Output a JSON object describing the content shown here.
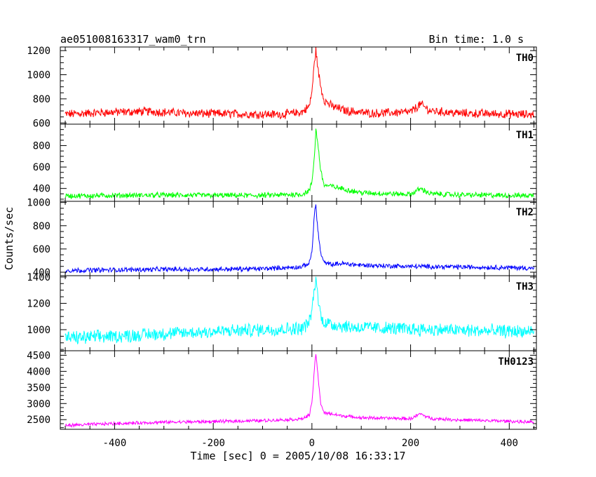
{
  "header": {
    "title": "ae051008163317_wam0_trn",
    "bin_time": "Bin time: 1.0 s"
  },
  "chart_data": {
    "type": "line",
    "xlabel": "Time [sec] 0 = 2005/10/08 16:33:17",
    "ylabel": "Counts/sec",
    "xlim": [
      -510,
      455
    ],
    "xticks": [
      -400,
      -200,
      0,
      200,
      400
    ],
    "grid": false,
    "panels": [
      {
        "name": "TH0",
        "color": "#ff0000",
        "ylim": [
          590,
          1230
        ],
        "yticks": [
          600,
          800,
          1000,
          1200
        ],
        "baseline": 675,
        "noise": 32,
        "x": [
          -500,
          -420,
          -330,
          -250,
          -150,
          -60,
          -20,
          -5,
          0,
          5,
          8,
          12,
          18,
          25,
          40,
          70,
          120,
          200,
          220,
          240,
          300,
          380,
          450
        ],
        "y": [
          672,
          688,
          695,
          680,
          675,
          670,
          690,
          740,
          860,
          1100,
          1210,
          1050,
          900,
          790,
          740,
          700,
          680,
          690,
          755,
          700,
          680,
          675,
          670
        ]
      },
      {
        "name": "TH1",
        "color": "#00ff00",
        "ylim": [
          280,
          1000
        ],
        "yticks": [
          400,
          600,
          800
        ],
        "baseline": 330,
        "noise": 22,
        "x": [
          -500,
          -400,
          -300,
          -200,
          -100,
          -20,
          -5,
          0,
          5,
          8,
          12,
          18,
          25,
          40,
          60,
          100,
          200,
          220,
          240,
          300,
          400,
          450
        ],
        "y": [
          330,
          335,
          338,
          335,
          335,
          345,
          380,
          460,
          700,
          950,
          820,
          560,
          430,
          420,
          400,
          360,
          345,
          400,
          350,
          340,
          335,
          335
        ]
      },
      {
        "name": "TH2",
        "color": "#0000ff",
        "ylim": [
          370,
          1010
        ],
        "yticks": [
          400,
          600,
          800,
          1000
        ],
        "baseline": 420,
        "noise": 18,
        "x": [
          -500,
          -400,
          -300,
          -200,
          -100,
          -20,
          -5,
          0,
          5,
          8,
          12,
          18,
          25,
          40,
          60,
          100,
          200,
          300,
          400,
          450
        ],
        "y": [
          415,
          420,
          425,
          425,
          430,
          445,
          480,
          580,
          900,
          980,
          760,
          560,
          480,
          465,
          475,
          460,
          450,
          445,
          440,
          435
        ]
      },
      {
        "name": "TH3",
        "color": "#00ffff",
        "ylim": [
          840,
          1410
        ],
        "yticks": [
          1000,
          1200,
          1400
        ],
        "baseline": 960,
        "noise": 45,
        "x": [
          -500,
          -400,
          -300,
          -200,
          -100,
          -20,
          -5,
          0,
          5,
          8,
          12,
          18,
          25,
          40,
          80,
          150,
          250,
          350,
          450
        ],
        "y": [
          935,
          950,
          970,
          985,
          1000,
          1010,
          1060,
          1150,
          1300,
          1400,
          1250,
          1100,
          1060,
          1040,
          1020,
          1010,
          1000,
          990,
          985
        ]
      },
      {
        "name": "TH0123",
        "color": "#ff00ff",
        "ylim": [
          2200,
          4640
        ],
        "yticks": [
          2500,
          3000,
          3500,
          4000,
          4500
        ],
        "baseline": 2400,
        "noise": 45,
        "x": [
          -500,
          -400,
          -300,
          -200,
          -100,
          -20,
          -5,
          0,
          5,
          8,
          12,
          18,
          25,
          40,
          60,
          100,
          200,
          220,
          240,
          300,
          400,
          450
        ],
        "y": [
          2320,
          2380,
          2420,
          2440,
          2470,
          2520,
          2650,
          3000,
          4100,
          4550,
          3900,
          3000,
          2700,
          2680,
          2620,
          2560,
          2530,
          2680,
          2540,
          2490,
          2450,
          2420
        ]
      }
    ]
  }
}
